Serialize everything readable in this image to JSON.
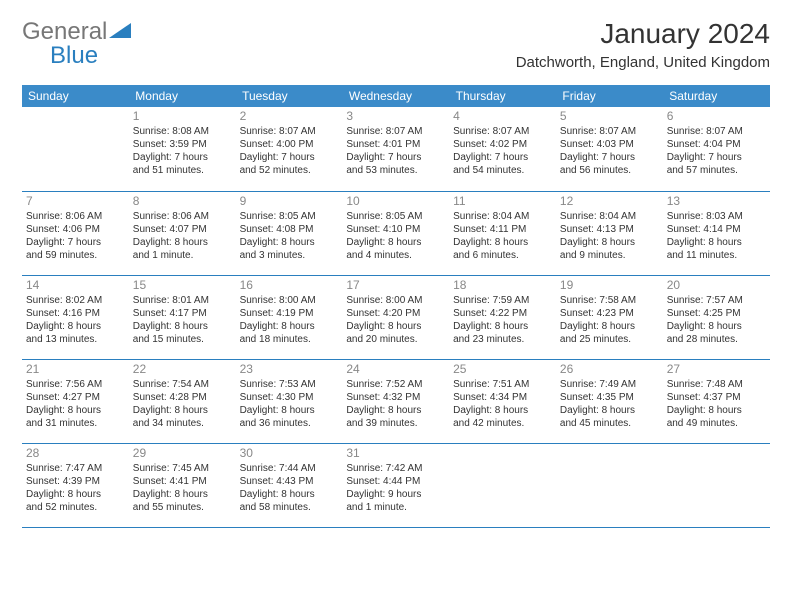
{
  "logo": {
    "part1": "General",
    "part2": "Blue"
  },
  "title": "January 2024",
  "location": "Datchworth, England, United Kingdom",
  "colors": {
    "header_bg": "#3b8bc9",
    "header_text": "#ffffff",
    "border": "#2a7fbf",
    "daynum": "#888888",
    "body_text": "#333333",
    "logo_general": "#777777",
    "logo_blue": "#2a7fbf",
    "background": "#ffffff"
  },
  "fonts": {
    "title_size": 28,
    "location_size": 15,
    "header_size": 12,
    "daynum_size": 12,
    "cell_size": 10
  },
  "weekdays": [
    "Sunday",
    "Monday",
    "Tuesday",
    "Wednesday",
    "Thursday",
    "Friday",
    "Saturday"
  ],
  "weeks": [
    [
      {
        "day": "",
        "lines": []
      },
      {
        "day": "1",
        "lines": [
          "Sunrise: 8:08 AM",
          "Sunset: 3:59 PM",
          "Daylight: 7 hours",
          "and 51 minutes."
        ]
      },
      {
        "day": "2",
        "lines": [
          "Sunrise: 8:07 AM",
          "Sunset: 4:00 PM",
          "Daylight: 7 hours",
          "and 52 minutes."
        ]
      },
      {
        "day": "3",
        "lines": [
          "Sunrise: 8:07 AM",
          "Sunset: 4:01 PM",
          "Daylight: 7 hours",
          "and 53 minutes."
        ]
      },
      {
        "day": "4",
        "lines": [
          "Sunrise: 8:07 AM",
          "Sunset: 4:02 PM",
          "Daylight: 7 hours",
          "and 54 minutes."
        ]
      },
      {
        "day": "5",
        "lines": [
          "Sunrise: 8:07 AM",
          "Sunset: 4:03 PM",
          "Daylight: 7 hours",
          "and 56 minutes."
        ]
      },
      {
        "day": "6",
        "lines": [
          "Sunrise: 8:07 AM",
          "Sunset: 4:04 PM",
          "Daylight: 7 hours",
          "and 57 minutes."
        ]
      }
    ],
    [
      {
        "day": "7",
        "lines": [
          "Sunrise: 8:06 AM",
          "Sunset: 4:06 PM",
          "Daylight: 7 hours",
          "and 59 minutes."
        ]
      },
      {
        "day": "8",
        "lines": [
          "Sunrise: 8:06 AM",
          "Sunset: 4:07 PM",
          "Daylight: 8 hours",
          "and 1 minute."
        ]
      },
      {
        "day": "9",
        "lines": [
          "Sunrise: 8:05 AM",
          "Sunset: 4:08 PM",
          "Daylight: 8 hours",
          "and 3 minutes."
        ]
      },
      {
        "day": "10",
        "lines": [
          "Sunrise: 8:05 AM",
          "Sunset: 4:10 PM",
          "Daylight: 8 hours",
          "and 4 minutes."
        ]
      },
      {
        "day": "11",
        "lines": [
          "Sunrise: 8:04 AM",
          "Sunset: 4:11 PM",
          "Daylight: 8 hours",
          "and 6 minutes."
        ]
      },
      {
        "day": "12",
        "lines": [
          "Sunrise: 8:04 AM",
          "Sunset: 4:13 PM",
          "Daylight: 8 hours",
          "and 9 minutes."
        ]
      },
      {
        "day": "13",
        "lines": [
          "Sunrise: 8:03 AM",
          "Sunset: 4:14 PM",
          "Daylight: 8 hours",
          "and 11 minutes."
        ]
      }
    ],
    [
      {
        "day": "14",
        "lines": [
          "Sunrise: 8:02 AM",
          "Sunset: 4:16 PM",
          "Daylight: 8 hours",
          "and 13 minutes."
        ]
      },
      {
        "day": "15",
        "lines": [
          "Sunrise: 8:01 AM",
          "Sunset: 4:17 PM",
          "Daylight: 8 hours",
          "and 15 minutes."
        ]
      },
      {
        "day": "16",
        "lines": [
          "Sunrise: 8:00 AM",
          "Sunset: 4:19 PM",
          "Daylight: 8 hours",
          "and 18 minutes."
        ]
      },
      {
        "day": "17",
        "lines": [
          "Sunrise: 8:00 AM",
          "Sunset: 4:20 PM",
          "Daylight: 8 hours",
          "and 20 minutes."
        ]
      },
      {
        "day": "18",
        "lines": [
          "Sunrise: 7:59 AM",
          "Sunset: 4:22 PM",
          "Daylight: 8 hours",
          "and 23 minutes."
        ]
      },
      {
        "day": "19",
        "lines": [
          "Sunrise: 7:58 AM",
          "Sunset: 4:23 PM",
          "Daylight: 8 hours",
          "and 25 minutes."
        ]
      },
      {
        "day": "20",
        "lines": [
          "Sunrise: 7:57 AM",
          "Sunset: 4:25 PM",
          "Daylight: 8 hours",
          "and 28 minutes."
        ]
      }
    ],
    [
      {
        "day": "21",
        "lines": [
          "Sunrise: 7:56 AM",
          "Sunset: 4:27 PM",
          "Daylight: 8 hours",
          "and 31 minutes."
        ]
      },
      {
        "day": "22",
        "lines": [
          "Sunrise: 7:54 AM",
          "Sunset: 4:28 PM",
          "Daylight: 8 hours",
          "and 34 minutes."
        ]
      },
      {
        "day": "23",
        "lines": [
          "Sunrise: 7:53 AM",
          "Sunset: 4:30 PM",
          "Daylight: 8 hours",
          "and 36 minutes."
        ]
      },
      {
        "day": "24",
        "lines": [
          "Sunrise: 7:52 AM",
          "Sunset: 4:32 PM",
          "Daylight: 8 hours",
          "and 39 minutes."
        ]
      },
      {
        "day": "25",
        "lines": [
          "Sunrise: 7:51 AM",
          "Sunset: 4:34 PM",
          "Daylight: 8 hours",
          "and 42 minutes."
        ]
      },
      {
        "day": "26",
        "lines": [
          "Sunrise: 7:49 AM",
          "Sunset: 4:35 PM",
          "Daylight: 8 hours",
          "and 45 minutes."
        ]
      },
      {
        "day": "27",
        "lines": [
          "Sunrise: 7:48 AM",
          "Sunset: 4:37 PM",
          "Daylight: 8 hours",
          "and 49 minutes."
        ]
      }
    ],
    [
      {
        "day": "28",
        "lines": [
          "Sunrise: 7:47 AM",
          "Sunset: 4:39 PM",
          "Daylight: 8 hours",
          "and 52 minutes."
        ]
      },
      {
        "day": "29",
        "lines": [
          "Sunrise: 7:45 AM",
          "Sunset: 4:41 PM",
          "Daylight: 8 hours",
          "and 55 minutes."
        ]
      },
      {
        "day": "30",
        "lines": [
          "Sunrise: 7:44 AM",
          "Sunset: 4:43 PM",
          "Daylight: 8 hours",
          "and 58 minutes."
        ]
      },
      {
        "day": "31",
        "lines": [
          "Sunrise: 7:42 AM",
          "Sunset: 4:44 PM",
          "Daylight: 9 hours",
          "and 1 minute."
        ]
      },
      {
        "day": "",
        "lines": []
      },
      {
        "day": "",
        "lines": []
      },
      {
        "day": "",
        "lines": []
      }
    ]
  ]
}
